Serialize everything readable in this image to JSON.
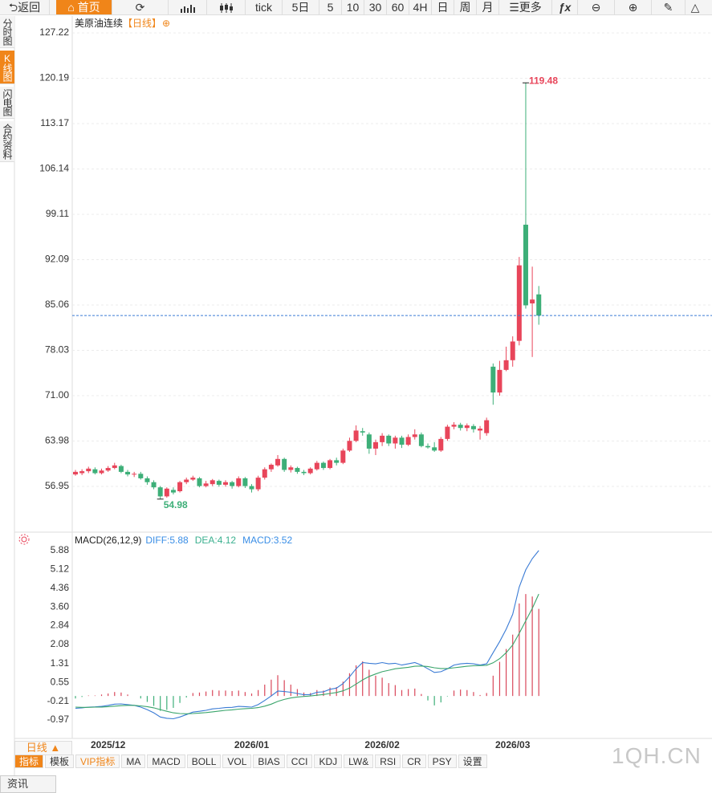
{
  "toolbar": {
    "items": [
      "返回",
      "首页",
      "tick",
      "5日",
      "5",
      "10",
      "30",
      "60",
      "4H",
      "日",
      "周",
      "月",
      "更多",
      "ƒx"
    ]
  },
  "sidebar": {
    "tabs": [
      "分时图",
      "K线图",
      "闪电图",
      "合约资料"
    ]
  },
  "chart_data": [
    {
      "type": "candlestick",
      "title": "美原油连续",
      "interval": "【日线】",
      "add_symbol": "⊕",
      "categories": [
        null,
        null,
        null,
        null,
        null,
        "2025/12",
        null,
        null,
        null,
        null,
        null,
        null,
        null,
        null,
        null,
        null,
        null,
        null,
        null,
        null,
        null,
        null,
        null,
        null,
        null,
        null,
        null,
        "2026/01",
        null,
        null,
        null,
        null,
        null,
        null,
        null,
        null,
        null,
        null,
        null,
        null,
        null,
        null,
        null,
        null,
        null,
        null,
        null,
        "2026/02",
        null,
        null,
        null,
        null,
        null,
        null,
        null,
        null,
        null,
        null,
        null,
        null,
        null,
        null,
        null,
        null,
        null,
        null,
        null,
        "2026/03",
        null,
        null,
        null,
        null
      ],
      "open": [
        58.8,
        59.0,
        59.3,
        59.6,
        59.0,
        59.4,
        59.8,
        60.1,
        59.2,
        58.8,
        58.9,
        58.2,
        57.6,
        56.8,
        55.4,
        56.4,
        56.2,
        57.6,
        58.0,
        58.2,
        57.0,
        57.3,
        57.8,
        57.2,
        57.6,
        57.0,
        58.2,
        57.0,
        56.5,
        58.3,
        59.6,
        60.2,
        61.2,
        59.5,
        59.8,
        59.2,
        59.0,
        59.6,
        60.6,
        59.8,
        61.0,
        60.6,
        62.5,
        64.0,
        65.5,
        65.0,
        62.8,
        63.8,
        64.8,
        63.6,
        64.5,
        63.4,
        64.6,
        65.0,
        63.2,
        63.0,
        62.5,
        64.3,
        66.2,
        66.5,
        66.0,
        66.3,
        65.6,
        65.2,
        75.5,
        71.5,
        75.0,
        76.5,
        79.5,
        97.5,
        85.3,
        86.7
      ],
      "high": [
        59.5,
        59.6,
        60.0,
        59.9,
        59.7,
        60.1,
        60.6,
        60.3,
        59.5,
        59.2,
        59.2,
        58.5,
        57.9,
        57.0,
        56.8,
        56.8,
        57.8,
        58.3,
        58.6,
        58.4,
        57.8,
        58.1,
        58.0,
        57.9,
        57.8,
        58.5,
        58.4,
        57.3,
        58.6,
        59.9,
        60.5,
        61.8,
        61.4,
        60.2,
        60.0,
        59.5,
        59.9,
        60.9,
        60.8,
        61.2,
        61.4,
        62.8,
        64.5,
        66.4,
        66.0,
        65.3,
        64.2,
        65.2,
        65.0,
        64.8,
        64.8,
        65.0,
        65.8,
        65.3,
        63.6,
        63.8,
        64.6,
        66.5,
        66.9,
        66.8,
        66.7,
        66.6,
        66.3,
        67.6,
        76.0,
        76.4,
        78.6,
        80.2,
        92.5,
        119.48,
        91.0,
        88.0
      ],
      "low": [
        58.6,
        58.7,
        59.0,
        58.8,
        58.8,
        59.2,
        59.6,
        59.0,
        58.5,
        58.4,
        58.0,
        57.2,
        56.5,
        54.98,
        55.2,
        55.7,
        56.0,
        57.3,
        57.8,
        56.8,
        56.8,
        57.0,
        56.9,
        56.9,
        56.6,
        56.8,
        56.7,
        56.0,
        56.2,
        58.0,
        59.2,
        60.0,
        59.2,
        59.1,
        58.9,
        58.7,
        58.8,
        59.4,
        59.5,
        59.6,
        60.2,
        60.4,
        62.3,
        63.8,
        64.8,
        62.0,
        61.8,
        63.2,
        63.2,
        62.8,
        62.9,
        63.2,
        64.2,
        63.0,
        62.8,
        62.3,
        62.3,
        64.0,
        65.8,
        65.6,
        65.5,
        65.3,
        64.2,
        64.8,
        69.6,
        71.0,
        74.8,
        75.5,
        78.8,
        84.5,
        77.0,
        82.0
      ],
      "close": [
        59.2,
        59.3,
        59.7,
        59.0,
        59.4,
        59.8,
        60.2,
        59.2,
        58.8,
        58.9,
        58.2,
        57.6,
        56.8,
        55.4,
        56.6,
        56.0,
        57.6,
        58.0,
        58.3,
        57.0,
        57.4,
        57.9,
        57.2,
        57.6,
        57.0,
        58.2,
        57.0,
        56.5,
        58.3,
        59.6,
        60.3,
        61.2,
        59.5,
        59.9,
        59.2,
        59.0,
        59.7,
        60.6,
        59.8,
        61.0,
        60.6,
        62.5,
        64.0,
        65.6,
        65.3,
        62.8,
        63.8,
        64.8,
        63.6,
        64.5,
        63.4,
        64.6,
        65.0,
        63.2,
        63.0,
        62.5,
        64.3,
        66.2,
        66.5,
        66.0,
        66.4,
        65.8,
        65.9,
        67.2,
        71.5,
        75.0,
        76.5,
        79.4,
        91.2,
        85.0,
        85.9,
        83.42
      ],
      "up_color": "#e8455a",
      "down_color": "#3daf78",
      "last_price_color": "#3a7bd5",
      "ylim": [
        50.23,
        128.96
      ],
      "yticks": [
        127.22,
        120.19,
        113.17,
        106.14,
        99.11,
        92.09,
        85.06,
        78.03,
        {
          "value": 71,
          "label": "71.00"
        },
        63.98,
        56.95
      ],
      "grid": true,
      "last_price_line": true
    },
    {
      "type": "macd",
      "title": "MACD(26,12,9)",
      "header": [
        "DIFF:5.88",
        "DEA:4.12",
        "MACD:3.52"
      ],
      "header_colors": [
        "#3a8ee6",
        "#3bb08f",
        "#3a8ee6"
      ],
      "series": [
        {
          "color": "#3a7bd5",
          "values": [
            -0.5,
            -0.48,
            -0.45,
            -0.44,
            -0.42,
            -0.38,
            -0.33,
            -0.32,
            -0.35,
            -0.38,
            -0.45,
            -0.55,
            -0.68,
            -0.85,
            -0.9,
            -0.92,
            -0.85,
            -0.75,
            -0.65,
            -0.62,
            -0.58,
            -0.52,
            -0.5,
            -0.47,
            -0.46,
            -0.42,
            -0.43,
            -0.45,
            -0.35,
            -0.18,
            0.0,
            0.2,
            0.18,
            0.15,
            0.1,
            0.05,
            0.06,
            0.15,
            0.17,
            0.27,
            0.32,
            0.5,
            0.78,
            1.1,
            1.35,
            1.32,
            1.3,
            1.35,
            1.3,
            1.32,
            1.25,
            1.3,
            1.35,
            1.25,
            1.1,
            0.95,
            0.98,
            1.1,
            1.25,
            1.3,
            1.32,
            1.3,
            1.25,
            1.3,
            1.75,
            2.2,
            2.7,
            3.3,
            4.4,
            5.1,
            5.55,
            5.88
          ]
        },
        {
          "color": "#3aa56b",
          "values": [
            -0.45,
            -0.46,
            -0.46,
            -0.45,
            -0.45,
            -0.43,
            -0.41,
            -0.39,
            -0.38,
            -0.38,
            -0.4,
            -0.43,
            -0.48,
            -0.55,
            -0.62,
            -0.68,
            -0.71,
            -0.72,
            -0.71,
            -0.69,
            -0.67,
            -0.64,
            -0.61,
            -0.58,
            -0.56,
            -0.53,
            -0.51,
            -0.5,
            -0.47,
            -0.41,
            -0.33,
            -0.22,
            -0.14,
            -0.08,
            -0.04,
            -0.02,
            0.0,
            0.03,
            0.06,
            0.1,
            0.14,
            0.21,
            0.32,
            0.48,
            0.65,
            0.79,
            0.89,
            0.98,
            1.04,
            1.1,
            1.13,
            1.16,
            1.2,
            1.21,
            1.19,
            1.14,
            1.11,
            1.11,
            1.14,
            1.17,
            1.2,
            1.22,
            1.23,
            1.24,
            1.34,
            1.51,
            1.75,
            2.06,
            2.53,
            3.04,
            3.54,
            4.12
          ]
        },
        {
          "color": "#d9475a",
          "negative_color": "#3daf78",
          "values": [
            -0.1,
            -0.04,
            0.02,
            0.02,
            0.06,
            0.1,
            0.16,
            0.14,
            0.06,
            0.0,
            -0.1,
            -0.24,
            -0.4,
            -0.6,
            -0.56,
            -0.48,
            -0.28,
            -0.06,
            0.12,
            0.14,
            0.18,
            0.24,
            0.22,
            0.22,
            0.2,
            0.22,
            0.16,
            0.1,
            0.24,
            0.46,
            0.66,
            0.84,
            0.64,
            0.46,
            0.28,
            0.14,
            0.12,
            0.24,
            0.22,
            0.34,
            0.36,
            0.58,
            0.92,
            1.24,
            1.4,
            1.06,
            0.82,
            0.74,
            0.52,
            0.44,
            0.24,
            0.28,
            0.3,
            0.08,
            -0.18,
            -0.38,
            -0.26,
            -0.02,
            0.22,
            0.26,
            0.24,
            0.16,
            0.04,
            0.12,
            0.82,
            1.38,
            1.9,
            2.48,
            3.74,
            4.12,
            4.02,
            3.52
          ]
        }
      ],
      "ylim": [
        -1.65,
        6.07
      ],
      "yticks": [
        5.88,
        5.12,
        4.36,
        {
          "value": 3.6,
          "label": "3.60"
        },
        2.84,
        2.08,
        1.31,
        0.55,
        -0.21,
        -0.97
      ]
    }
  ],
  "bottom_bar": {
    "period": "日线 ▲",
    "tabs": [
      "指标",
      "模板",
      "VIP指标",
      "MA",
      "MACD",
      "BOLL",
      "VOL",
      "BIAS",
      "CCI",
      "KDJ",
      "LW&",
      "RSI",
      "CR",
      "PSY",
      "设置"
    ]
  },
  "watermark": "1QH.CN",
  "footer": "资讯"
}
